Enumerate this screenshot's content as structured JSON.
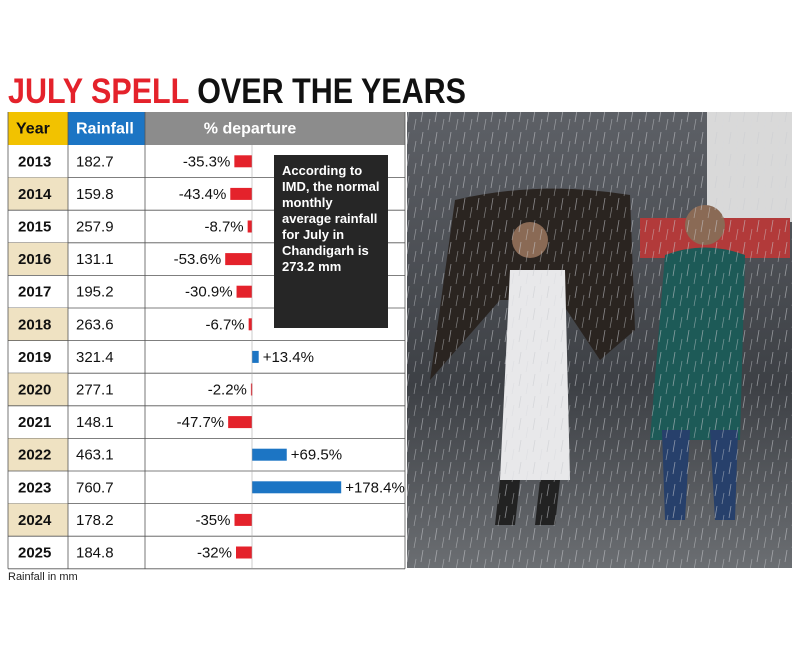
{
  "chart_data": {
    "type": "bar",
    "title_highlight": "JULY SPELL",
    "title": "OVER THE YEARS",
    "headers": [
      "Year",
      "Rainfall",
      "% departure"
    ],
    "categories": [
      "2013",
      "2014",
      "2015",
      "2016",
      "2017",
      "2018",
      "2019",
      "2020",
      "2021",
      "2022",
      "2023",
      "2024",
      "2025"
    ],
    "rainfall": [
      182.7,
      159.8,
      257.9,
      131.1,
      195.2,
      263.6,
      321.4,
      277.1,
      148.1,
      463.1,
      760.7,
      178.2,
      184.8
    ],
    "values": [
      -35.3,
      -43.4,
      -8.7,
      -53.6,
      -30.9,
      -6.7,
      13.4,
      -2.2,
      -47.7,
      69.5,
      178.4,
      -35,
      -32
    ],
    "value_labels": [
      "-35.3%",
      "-43.4%",
      "-8.7%",
      "-53.6%",
      "-30.9%",
      "-6.7%",
      "+13.4%",
      "-2.2%",
      "-47.7%",
      "+69.5%",
      "+178.4%",
      "-35%",
      "-32%"
    ],
    "color_negative": "#e4222b",
    "color_positive": "#1c75c4",
    "note": "According to IMD, the normal monthly average rainfall for July in Chandigarh is 273.2 mm",
    "footnote": "Rainfall in mm"
  }
}
